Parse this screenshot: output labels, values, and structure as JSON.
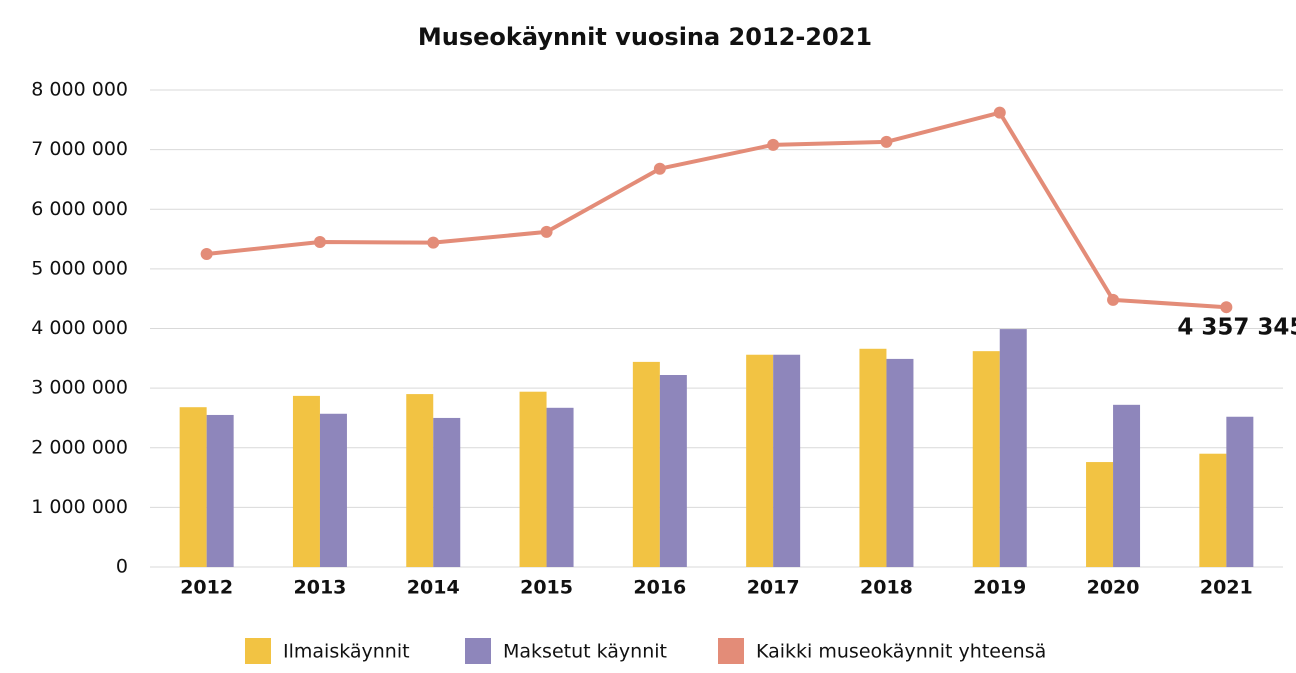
{
  "chart_data": {
    "type": "bar",
    "title": "Museokäynnit vuosina 2012-2021",
    "categories": [
      "2012",
      "2013",
      "2014",
      "2015",
      "2016",
      "2017",
      "2018",
      "2019",
      "2020",
      "2021"
    ],
    "series": [
      {
        "name": "Ilmaiskäynnit",
        "type": "bar",
        "color": "#f2c343",
        "values": [
          2680000,
          2870000,
          2900000,
          2940000,
          3440000,
          3560000,
          3660000,
          3620000,
          1760000,
          1900000
        ]
      },
      {
        "name": "Maksetut käynnit",
        "type": "bar",
        "color": "#8e86bb",
        "values": [
          2550000,
          2570000,
          2500000,
          2670000,
          3220000,
          3560000,
          3490000,
          3990000,
          2720000,
          2520000
        ]
      },
      {
        "name": "Kaikki museokäynnit yhteensä",
        "type": "line",
        "color": "#e38c78",
        "values": [
          5250000,
          5450000,
          5440000,
          5620000,
          6680000,
          7080000,
          7130000,
          7620000,
          4480000,
          4357345
        ],
        "value_labels": [
          null,
          null,
          null,
          null,
          null,
          null,
          null,
          null,
          null,
          "4 357 345"
        ]
      }
    ],
    "ylim": [
      0,
      8000000
    ],
    "yticks": [
      0,
      {
        "value": 1000000,
        "label": "1 000 000"
      },
      {
        "value": 2000000,
        "label": "2 000 000"
      },
      {
        "value": 3000000,
        "label": "3 000 000"
      },
      {
        "value": 4000000,
        "label": "4 000 000"
      },
      {
        "value": 5000000,
        "label": "5 000 000"
      },
      {
        "value": 6000000,
        "label": "6 000 000"
      },
      {
        "value": 7000000,
        "label": "7 000 000"
      },
      {
        "value": 8000000,
        "label": "8 000 000"
      }
    ],
    "grid": true
  }
}
